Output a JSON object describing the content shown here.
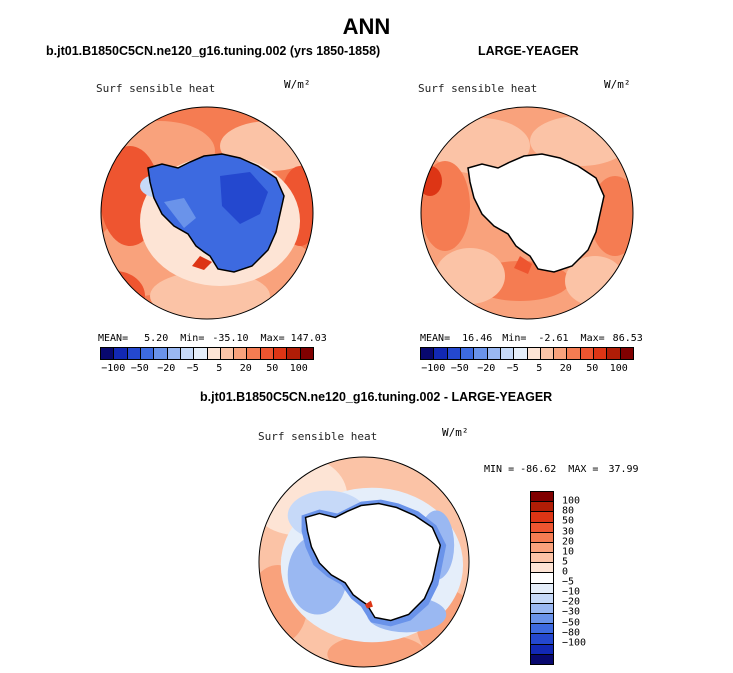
{
  "title": "ANN",
  "panels": {
    "model": {
      "subtitle": "b.jt01.B1850C5CN.ne120_g16.tuning.002 (yrs 1850-1858)",
      "label": "Surf sensible heat",
      "units": "W/m²",
      "stats": {
        "mean_label": "MEAN=",
        "mean": "5.20",
        "min_label": "Min=",
        "min": "-35.10",
        "max_label": "Max=",
        "max": "147.03"
      }
    },
    "obs": {
      "subtitle": "LARGE-YEAGER",
      "label": "Surf sensible heat",
      "units": "W/m²",
      "stats": {
        "mean_label": "MEAN=",
        "mean": "16.46",
        "min_label": "Min=",
        "min": "-2.61",
        "max_label": "Max=",
        "max": "86.53"
      }
    },
    "diff": {
      "subtitle": "b.jt01.B1850C5CN.ne120_g16.tuning.002 - LARGE-YEAGER",
      "label": "Surf sensible heat",
      "units": "W/m²",
      "stats": {
        "min_label": "MIN =",
        "min": "-86.62",
        "max_label": "MAX =",
        "max": "37.99"
      }
    }
  },
  "colorbar_main": {
    "colors": [
      "#08086e",
      "#1228b4",
      "#2448cf",
      "#3d6ae0",
      "#6a93ea",
      "#9ab8f2",
      "#c6d9f8",
      "#e5eefa",
      "#fde4d5",
      "#fbc3a6",
      "#f9a27c",
      "#f57c52",
      "#ee5530",
      "#dd3515",
      "#b11d06",
      "#800000"
    ],
    "ticks": [
      "−100",
      "−50",
      "−20",
      "−5",
      "5",
      "20",
      "50",
      "100"
    ]
  },
  "colorbar_diff": {
    "colors": [
      "#800000",
      "#b11d06",
      "#dd3515",
      "#ee5530",
      "#f57c52",
      "#f9a27c",
      "#fbc3a6",
      "#fde4d5",
      "#ffffff",
      "#e5eefa",
      "#c6d9f8",
      "#9ab8f2",
      "#6a93ea",
      "#3d6ae0",
      "#2448cf",
      "#1228b4",
      "#08086e"
    ],
    "ticks": [
      "100",
      "80",
      "50",
      "30",
      "20",
      "10",
      "5",
      "0",
      "−5",
      "−10",
      "−20",
      "−30",
      "−50",
      "−80",
      "−100"
    ]
  }
}
